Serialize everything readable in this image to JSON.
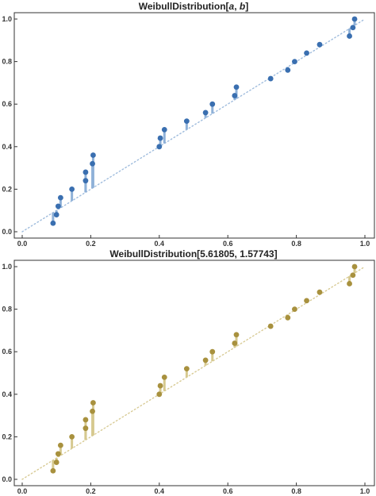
{
  "chart_data": [
    {
      "type": "scatter",
      "title_parts": [
        "WeibullDistribution[",
        "a",
        ", ",
        "b",
        "]"
      ],
      "xlim": [
        0,
        1
      ],
      "ylim": [
        0,
        1
      ],
      "xticks": [
        "0.0",
        "0.2",
        "0.4",
        "0.6",
        "0.8",
        "1.0"
      ],
      "yticks": [
        "0.0",
        "0.2",
        "0.4",
        "0.6",
        "0.8",
        "1.0"
      ],
      "grid": false,
      "point_color": "#3A6FB0",
      "stem_color": "#8FB1D8",
      "reference_line_color": "#9FBCDD",
      "points": [
        {
          "x": 0.09,
          "y": 0.04
        },
        {
          "x": 0.1,
          "y": 0.08
        },
        {
          "x": 0.105,
          "y": 0.12
        },
        {
          "x": 0.112,
          "y": 0.16
        },
        {
          "x": 0.145,
          "y": 0.2
        },
        {
          "x": 0.185,
          "y": 0.24
        },
        {
          "x": 0.185,
          "y": 0.28
        },
        {
          "x": 0.205,
          "y": 0.32
        },
        {
          "x": 0.207,
          "y": 0.36
        },
        {
          "x": 0.4,
          "y": 0.4
        },
        {
          "x": 0.403,
          "y": 0.44
        },
        {
          "x": 0.415,
          "y": 0.48
        },
        {
          "x": 0.48,
          "y": 0.52
        },
        {
          "x": 0.535,
          "y": 0.56
        },
        {
          "x": 0.555,
          "y": 0.6
        },
        {
          "x": 0.62,
          "y": 0.64
        },
        {
          "x": 0.625,
          "y": 0.68
        },
        {
          "x": 0.725,
          "y": 0.72
        },
        {
          "x": 0.775,
          "y": 0.76
        },
        {
          "x": 0.795,
          "y": 0.8
        },
        {
          "x": 0.83,
          "y": 0.84
        },
        {
          "x": 0.868,
          "y": 0.88
        },
        {
          "x": 0.955,
          "y": 0.92
        },
        {
          "x": 0.965,
          "y": 0.96
        },
        {
          "x": 0.97,
          "y": 1.0
        }
      ]
    },
    {
      "type": "scatter",
      "title_parts": [
        "WeibullDistribution[5.61805, 1.57743]"
      ],
      "xlim": [
        0,
        1
      ],
      "ylim": [
        0,
        1
      ],
      "xticks": [
        "0.0",
        "0.2",
        "0.4",
        "0.6",
        "0.8",
        "1.0"
      ],
      "yticks": [
        "0.0",
        "0.2",
        "0.4",
        "0.6",
        "0.8",
        "1.0"
      ],
      "grid": false,
      "point_color": "#A8913E",
      "stem_color": "#D6C98F",
      "reference_line_color": "#D8CB95",
      "points": [
        {
          "x": 0.09,
          "y": 0.04
        },
        {
          "x": 0.1,
          "y": 0.08
        },
        {
          "x": 0.105,
          "y": 0.12
        },
        {
          "x": 0.112,
          "y": 0.16
        },
        {
          "x": 0.145,
          "y": 0.2
        },
        {
          "x": 0.185,
          "y": 0.24
        },
        {
          "x": 0.185,
          "y": 0.28
        },
        {
          "x": 0.205,
          "y": 0.32
        },
        {
          "x": 0.207,
          "y": 0.36
        },
        {
          "x": 0.4,
          "y": 0.4
        },
        {
          "x": 0.403,
          "y": 0.44
        },
        {
          "x": 0.415,
          "y": 0.48
        },
        {
          "x": 0.48,
          "y": 0.52
        },
        {
          "x": 0.535,
          "y": 0.56
        },
        {
          "x": 0.555,
          "y": 0.6
        },
        {
          "x": 0.62,
          "y": 0.64
        },
        {
          "x": 0.625,
          "y": 0.68
        },
        {
          "x": 0.725,
          "y": 0.72
        },
        {
          "x": 0.775,
          "y": 0.76
        },
        {
          "x": 0.795,
          "y": 0.8
        },
        {
          "x": 0.83,
          "y": 0.84
        },
        {
          "x": 0.868,
          "y": 0.88
        },
        {
          "x": 0.955,
          "y": 0.92
        },
        {
          "x": 0.965,
          "y": 0.96
        },
        {
          "x": 0.97,
          "y": 1.0
        }
      ]
    }
  ]
}
